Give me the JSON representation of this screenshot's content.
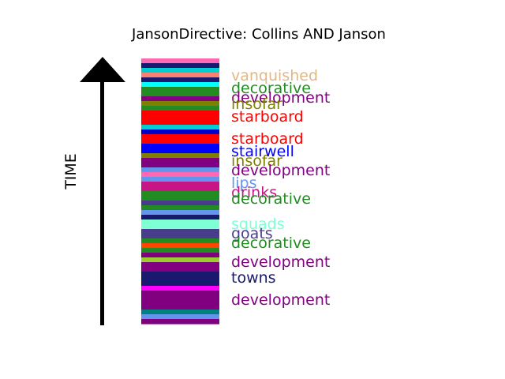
{
  "chart_data": {
    "type": "bar",
    "title": "JansonDirective: Collins AND Janson",
    "ylabel": "TIME",
    "xlabel": "",
    "grid": false,
    "legend": "none",
    "arrow_color": "#000000",
    "segments": [
      {
        "color": "#FF69B4"
      },
      {
        "color": "#191970"
      },
      {
        "color": "#00CED1"
      },
      {
        "color": "#FA8072"
      },
      {
        "color": "#191970"
      },
      {
        "color": "#00FFFF"
      },
      {
        "color": "#228B22"
      },
      {
        "color": "#228B22"
      },
      {
        "color": "#800080"
      },
      {
        "color": "#808000"
      },
      {
        "color": "#228B22"
      },
      {
        "color": "#FF0000"
      },
      {
        "color": "#FF0000"
      },
      {
        "color": "#FF0000"
      },
      {
        "color": "#00CED1"
      },
      {
        "color": "#0000CD"
      },
      {
        "color": "#FF0000"
      },
      {
        "color": "#FF0000"
      },
      {
        "color": "#0000FF"
      },
      {
        "color": "#0000FF"
      },
      {
        "color": "#808000"
      },
      {
        "color": "#800080"
      },
      {
        "color": "#800080"
      },
      {
        "color": "#6495ED"
      },
      {
        "color": "#FF69B4"
      },
      {
        "color": "#6495ED"
      },
      {
        "color": "#C71585"
      },
      {
        "color": "#C71585"
      },
      {
        "color": "#228B22"
      },
      {
        "color": "#228B22"
      },
      {
        "color": "#483D8B"
      },
      {
        "color": "#228B22"
      },
      {
        "color": "#6495ED"
      },
      {
        "color": "#191970"
      },
      {
        "color": "#7FFFD4"
      },
      {
        "color": "#7FFFD4"
      },
      {
        "color": "#483D8B"
      },
      {
        "color": "#483D8B"
      },
      {
        "color": "#228B22"
      },
      {
        "color": "#FF4500"
      },
      {
        "color": "#228B22"
      },
      {
        "color": "#800080"
      },
      {
        "color": "#9ACD32"
      },
      {
        "color": "#800080"
      },
      {
        "color": "#800080"
      },
      {
        "color": "#191970"
      },
      {
        "color": "#191970"
      },
      {
        "color": "#191970"
      },
      {
        "color": "#FF00FF"
      },
      {
        "color": "#800080"
      },
      {
        "color": "#800080"
      },
      {
        "color": "#800080"
      },
      {
        "color": "#800080"
      },
      {
        "color": "#008080"
      },
      {
        "color": "#6495ED"
      },
      {
        "color": "#800080"
      }
    ],
    "labels": [
      {
        "text": "vanquished",
        "color": "#DEB887"
      },
      {
        "text": "decorative",
        "color": "#228B22"
      },
      {
        "text": "development",
        "color": "#800080"
      },
      {
        "text": "insofar",
        "color": "#808000"
      },
      {
        "text": "starboard",
        "color": "#FF0000"
      },
      {
        "text": "starboard",
        "color": "#FF0000"
      },
      {
        "text": "stairwell",
        "color": "#0000FF"
      },
      {
        "text": "insofar",
        "color": "#808000"
      },
      {
        "text": "development",
        "color": "#800080"
      },
      {
        "text": "lips",
        "color": "#6495ED"
      },
      {
        "text": "drinks",
        "color": "#C71585"
      },
      {
        "text": "decorative",
        "color": "#228B22"
      },
      {
        "text": "squads",
        "color": "#7FFFD4"
      },
      {
        "text": "goats",
        "color": "#483D8B"
      },
      {
        "text": "decorative",
        "color": "#228B22"
      },
      {
        "text": "development",
        "color": "#800080"
      },
      {
        "text": "towns",
        "color": "#191970"
      },
      {
        "text": "development",
        "color": "#800080"
      }
    ]
  }
}
